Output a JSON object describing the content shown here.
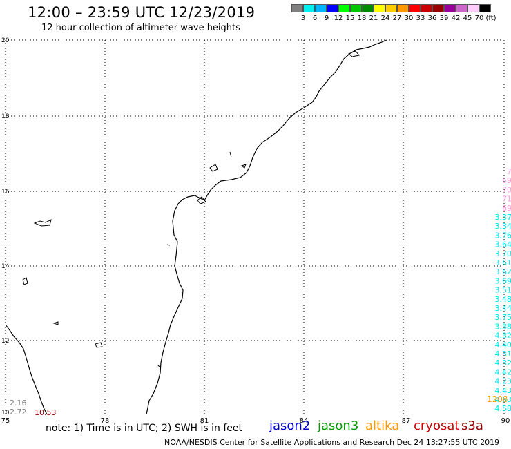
{
  "header": {
    "title": "12:00 – 23:59 UTC 12/23/2019",
    "subtitle": "12 hour collection of altimeter wave heights"
  },
  "legend": {
    "colors": [
      "#808080",
      "#00f0f0",
      "#00b4ff",
      "#0000ff",
      "#00ff00",
      "#00c800",
      "#008c00",
      "#ffff00",
      "#ffcc00",
      "#ff9900",
      "#ff0000",
      "#cc0000",
      "#990000",
      "#990099",
      "#cc66cc",
      "#ffccff",
      "#000000"
    ],
    "labels": [
      "3",
      "6",
      "9",
      "12",
      "15",
      "18",
      "21",
      "24",
      "27",
      "30",
      "33",
      "36",
      "39",
      "42",
      "45",
      "70",
      "(ft)"
    ]
  },
  "map": {
    "lat_labels": [
      "20",
      "18",
      "16",
      "14",
      "12",
      "10"
    ],
    "lon_labels": [
      "75",
      "78",
      "81",
      "84",
      "87",
      "90"
    ]
  },
  "wave_labels": {
    "left": [
      {
        "text": "2.16",
        "color": "#808080"
      },
      {
        "text": "2.72",
        "color": "#808080"
      },
      {
        "text": "10.53",
        "color": "#990000"
      }
    ],
    "right": [
      {
        "text": "7",
        "color": "#ff99dd"
      },
      {
        "text": "69",
        "color": "#ff99dd"
      },
      {
        "text": "70",
        "color": "#ff99dd"
      },
      {
        "text": "71",
        "color": "#ff99dd"
      },
      {
        "text": "69",
        "color": "#ff99dd"
      },
      {
        "text": "3.37",
        "color": "#00e5ee"
      },
      {
        "text": "3.34",
        "color": "#00e5ee"
      },
      {
        "text": "3.76",
        "color": "#00e5ee"
      },
      {
        "text": "3.64",
        "color": "#00e5ee"
      },
      {
        "text": "3.70",
        "color": "#00e5ee"
      },
      {
        "text": "3.61",
        "color": "#00e5ee"
      },
      {
        "text": "3.62",
        "color": "#00e5ee"
      },
      {
        "text": "3.69",
        "color": "#00e5ee"
      },
      {
        "text": "3.51",
        "color": "#00e5ee"
      },
      {
        "text": "3.48",
        "color": "#00e5ee"
      },
      {
        "text": "3.44",
        "color": "#00e5ee"
      },
      {
        "text": "3.75",
        "color": "#00e5ee"
      },
      {
        "text": "3.38",
        "color": "#00e5ee"
      },
      {
        "text": "4.32",
        "color": "#00e5ee"
      },
      {
        "text": "4.40",
        "color": "#00e5ee"
      },
      {
        "text": "4.31",
        "color": "#00e5ee"
      },
      {
        "text": "4.32",
        "color": "#00e5ee"
      },
      {
        "text": "4.42",
        "color": "#00e5ee"
      },
      {
        "text": "4.23",
        "color": "#00e5ee"
      },
      {
        "text": "4.43",
        "color": "#00e5ee"
      },
      {
        "text": "4.53",
        "color": "#00e5ee"
      },
      {
        "text": "4.58",
        "color": "#00e5ee"
      }
    ],
    "orange": {
      "text": "1208",
      "color": "#ff9900"
    }
  },
  "footer": {
    "note": "note: 1) Time is in UTC; 2) SWH is in feet",
    "satellites": [
      {
        "name": "jason2",
        "color": "#0000cc"
      },
      {
        "name": "jason3",
        "color": "#009900"
      },
      {
        "name": "altika",
        "color": "#ff9900"
      },
      {
        "name": "cryosat",
        "color": "#cc0000"
      },
      {
        "name": "s3a",
        "color": "#990000"
      }
    ],
    "credit": "NOAA/NESDIS Center for Satellite Applications and Research     Dec 24 13:27:55 UTC 2019"
  }
}
